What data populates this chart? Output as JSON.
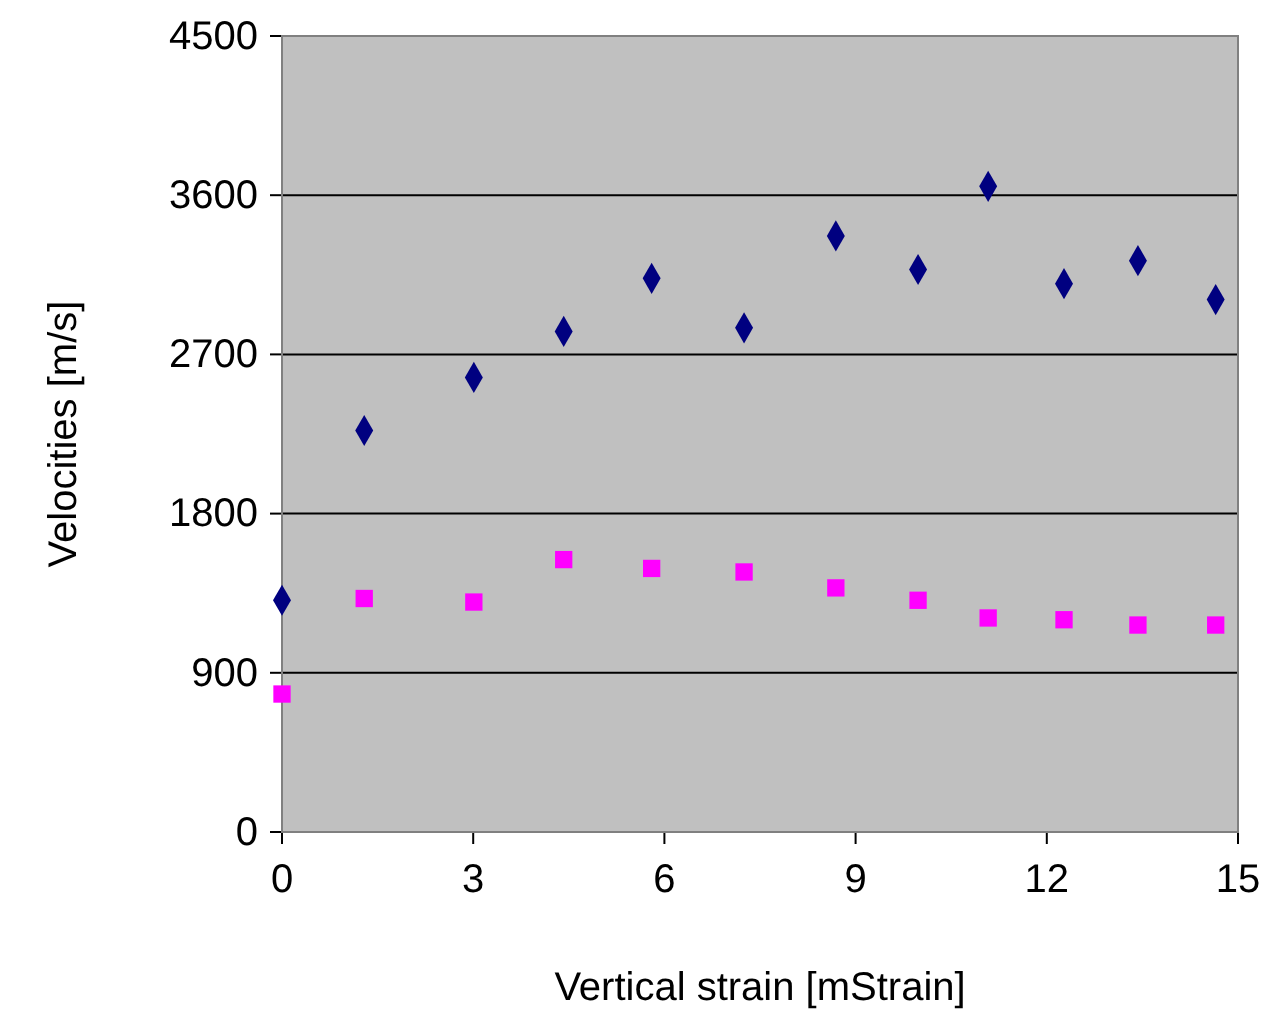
{
  "chart_data": {
    "type": "scatter",
    "xlabel": "Vertical strain [mStrain]",
    "ylabel": "Velocities [m/s]",
    "xlim": [
      0,
      15
    ],
    "xticks": [
      0,
      3,
      6,
      9,
      12,
      15
    ],
    "ylim": [
      0,
      4500
    ],
    "yticks": [
      0,
      900,
      1800,
      2700,
      3600,
      4500
    ],
    "grid": "y",
    "series": [
      {
        "color": "#000080",
        "marker": "diamond",
        "x": [
          0,
          1.29,
          3.01,
          4.42,
          5.8,
          7.25,
          8.69,
          9.98,
          11.08,
          12.27,
          13.43,
          14.65
        ],
        "values": [
          1310,
          2270,
          2570,
          2830,
          3130,
          2850,
          3370,
          3180,
          3650,
          3100,
          3230,
          3010
        ]
      },
      {
        "color": "#ff00ff",
        "marker": "square",
        "x": [
          0,
          1.29,
          3.01,
          4.42,
          5.8,
          7.25,
          8.69,
          9.98,
          11.08,
          12.27,
          13.43,
          14.65
        ],
        "values": [
          780,
          1320,
          1300,
          1540,
          1490,
          1470,
          1380,
          1310,
          1210,
          1200,
          1170,
          1170
        ]
      }
    ]
  }
}
